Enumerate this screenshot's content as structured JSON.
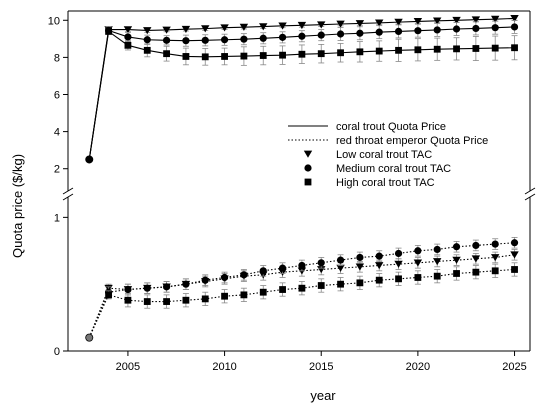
{
  "chart_data": {
    "type": "line",
    "xlabel": "year",
    "ylabel": "Quota price ($/kg)",
    "x": [
      2003,
      2004,
      2005,
      2006,
      2007,
      2008,
      2009,
      2010,
      2011,
      2012,
      2013,
      2014,
      2015,
      2016,
      2017,
      2018,
      2019,
      2020,
      2021,
      2022,
      2023,
      2024,
      2025
    ],
    "xlim": [
      2001.9,
      2025.8
    ],
    "x_ticks": [
      "2005",
      "2010",
      "2015",
      "2020",
      "2025"
    ],
    "broken_y_axis": true,
    "upper_panel": {
      "ylim": [
        1.5,
        10.5
      ],
      "y_ticks": [
        "2",
        "4",
        "6",
        "8",
        "10"
      ],
      "series": [
        {
          "name": "Low coral trout TAC",
          "line": "coral trout Quota Price",
          "marker": "triangle-down",
          "values": [
            2.5,
            9.5,
            9.5,
            9.45,
            9.48,
            9.52,
            9.55,
            9.6,
            9.63,
            9.66,
            9.7,
            9.73,
            9.76,
            9.8,
            9.83,
            9.86,
            9.9,
            9.94,
            9.97,
            10.0,
            10.03,
            10.06,
            10.1
          ],
          "err": [
            0,
            0.1,
            0.12,
            0.1,
            0.1,
            0.1,
            0.1,
            0.1,
            0.1,
            0.1,
            0.1,
            0.1,
            0.1,
            0.1,
            0.1,
            0.1,
            0.1,
            0.1,
            0.1,
            0.1,
            0.1,
            0.1,
            0.1
          ]
        },
        {
          "name": "Medium coral trout TAC",
          "line": "coral trout Quota Price",
          "marker": "circle",
          "values": [
            2.5,
            9.45,
            9.1,
            8.95,
            8.92,
            8.9,
            8.92,
            8.95,
            8.98,
            9.03,
            9.08,
            9.14,
            9.2,
            9.26,
            9.3,
            9.36,
            9.4,
            9.44,
            9.48,
            9.53,
            9.56,
            9.6,
            9.64
          ],
          "err": [
            0,
            0.2,
            0.25,
            0.25,
            0.25,
            0.3,
            0.3,
            0.3,
            0.3,
            0.3,
            0.3,
            0.3,
            0.3,
            0.35,
            0.35,
            0.35,
            0.35,
            0.35,
            0.35,
            0.35,
            0.35,
            0.35,
            0.35
          ]
        },
        {
          "name": "High coral trout TAC",
          "line": "coral trout Quota Price",
          "marker": "square",
          "values": [
            2.5,
            9.4,
            8.65,
            8.38,
            8.2,
            8.05,
            8.03,
            8.05,
            8.07,
            8.1,
            8.12,
            8.17,
            8.2,
            8.25,
            8.3,
            8.34,
            8.38,
            8.41,
            8.44,
            8.46,
            8.48,
            8.5,
            8.52
          ],
          "err": [
            0,
            0.15,
            0.25,
            0.35,
            0.4,
            0.45,
            0.45,
            0.45,
            0.5,
            0.5,
            0.5,
            0.5,
            0.5,
            0.5,
            0.55,
            0.55,
            0.6,
            0.6,
            0.6,
            0.6,
            0.65,
            0.65,
            0.65
          ]
        }
      ]
    },
    "lower_panel": {
      "ylim": [
        0,
        1.1
      ],
      "y_ticks": [
        "0",
        "1"
      ],
      "series": [
        {
          "name": "Low coral trout TAC",
          "line": "red throat emperor Quota Price",
          "marker": "triangle-down",
          "values": [
            0.1,
            0.47,
            0.46,
            0.47,
            0.48,
            0.5,
            0.52,
            0.54,
            0.56,
            0.57,
            0.59,
            0.6,
            0.61,
            0.62,
            0.63,
            0.64,
            0.65,
            0.66,
            0.67,
            0.68,
            0.69,
            0.7,
            0.72
          ],
          "err": [
            0,
            0.03,
            0.04,
            0.04,
            0.04,
            0.04,
            0.04,
            0.04,
            0.04,
            0.04,
            0.04,
            0.04,
            0.04,
            0.04,
            0.04,
            0.04,
            0.04,
            0.04,
            0.04,
            0.04,
            0.04,
            0.04,
            0.04
          ]
        },
        {
          "name": "Medium coral trout TAC",
          "line": "red throat emperor Quota Price",
          "marker": "circle",
          "values": [
            0.1,
            0.44,
            0.46,
            0.47,
            0.48,
            0.5,
            0.53,
            0.55,
            0.57,
            0.6,
            0.62,
            0.64,
            0.66,
            0.68,
            0.7,
            0.71,
            0.73,
            0.75,
            0.76,
            0.78,
            0.79,
            0.8,
            0.81
          ],
          "err": [
            0,
            0.04,
            0.04,
            0.04,
            0.04,
            0.04,
            0.04,
            0.04,
            0.04,
            0.04,
            0.04,
            0.04,
            0.04,
            0.04,
            0.04,
            0.04,
            0.04,
            0.04,
            0.04,
            0.04,
            0.04,
            0.04,
            0.04
          ]
        },
        {
          "name": "High coral trout TAC",
          "line": "red throat emperor Quota Price",
          "marker": "square",
          "values": [
            0.1,
            0.42,
            0.38,
            0.37,
            0.37,
            0.38,
            0.39,
            0.41,
            0.42,
            0.44,
            0.46,
            0.47,
            0.49,
            0.5,
            0.51,
            0.53,
            0.54,
            0.55,
            0.56,
            0.58,
            0.59,
            0.6,
            0.61
          ],
          "err": [
            0,
            0.03,
            0.05,
            0.05,
            0.05,
            0.05,
            0.05,
            0.05,
            0.05,
            0.05,
            0.05,
            0.05,
            0.05,
            0.05,
            0.05,
            0.05,
            0.05,
            0.05,
            0.05,
            0.05,
            0.05,
            0.05,
            0.05
          ]
        }
      ]
    },
    "legend": {
      "placement": "right",
      "line_entries": [
        {
          "label": "coral trout Quota Price",
          "style": "solid"
        },
        {
          "label": "red throat emperor Quota Price",
          "style": "dotted"
        }
      ],
      "marker_entries": [
        {
          "label": "Low coral trout TAC",
          "marker": "triangle-down"
        },
        {
          "label": "Medium coral trout TAC",
          "marker": "circle"
        },
        {
          "label": "High coral trout TAC",
          "marker": "square"
        }
      ]
    },
    "grid": false
  }
}
